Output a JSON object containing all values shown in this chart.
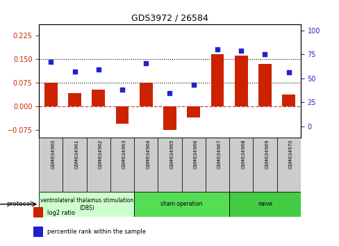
{
  "title": "GDS3972 / 26584",
  "samples": [
    "GSM634960",
    "GSM634961",
    "GSM634962",
    "GSM634963",
    "GSM634964",
    "GSM634965",
    "GSM634966",
    "GSM634967",
    "GSM634968",
    "GSM634969",
    "GSM634970"
  ],
  "log2_ratio": [
    0.075,
    0.043,
    0.052,
    -0.055,
    0.075,
    -0.075,
    -0.035,
    0.165,
    0.162,
    0.135,
    0.038
  ],
  "percentile_rank": [
    67,
    57,
    59,
    38,
    66,
    35,
    43,
    80,
    79,
    75,
    56
  ],
  "ylim_left": [
    -0.1,
    0.26
  ],
  "ylim_right": [
    -11.76,
    105.88
  ],
  "yticks_left": [
    -0.075,
    0,
    0.075,
    0.15,
    0.225
  ],
  "yticks_right": [
    0,
    25,
    50,
    75,
    100
  ],
  "hlines": [
    0.075,
    0.15
  ],
  "bar_color": "#cc2200",
  "dot_color": "#2222cc",
  "zero_line_color": "#cc4444",
  "protocol_group_colors": [
    "#ccffcc",
    "#55dd55",
    "#44cc44"
  ],
  "protocol_groups": [
    {
      "label": "ventrolateral thalamus stimulation\n(DBS)",
      "start": 0,
      "end": 3
    },
    {
      "label": "sham operation",
      "start": 4,
      "end": 7
    },
    {
      "label": "naive",
      "start": 8,
      "end": 10
    }
  ],
  "legend_items": [
    {
      "color": "#cc2200",
      "label": "log2 ratio"
    },
    {
      "color": "#2222cc",
      "label": "percentile rank within the sample"
    }
  ],
  "sample_box_color": "#cccccc",
  "plot_bg": "#ffffff"
}
